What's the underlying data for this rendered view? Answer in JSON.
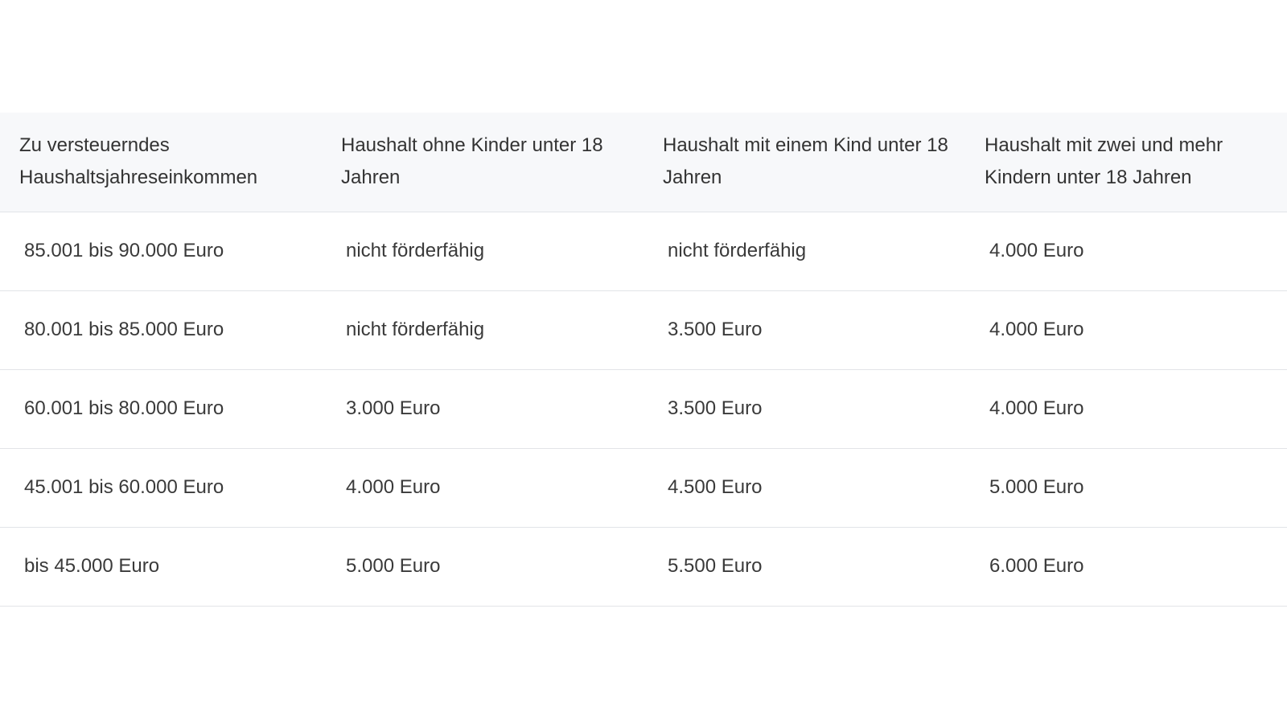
{
  "table": {
    "headers": [
      "Zu versteuerndes Haushaltsjahreseinkommen",
      "Haushalt ohne Kinder unter 18 Jahren",
      "Haushalt mit einem Kind unter 18 Jahren",
      "Haushalt mit zwei und mehr Kindern unter 18 Jahren"
    ],
    "rows": [
      [
        "85.001 bis 90.000 Euro",
        "nicht förderfähig",
        "nicht förderfähig",
        "4.000 Euro"
      ],
      [
        "80.001 bis 85.000 Euro",
        "nicht förderfähig",
        "3.500 Euro",
        "4.000 Euro"
      ],
      [
        "60.001 bis 80.000 Euro",
        "3.000 Euro",
        "3.500 Euro",
        "4.000 Euro"
      ],
      [
        "45.001 bis 60.000 Euro",
        "4.000 Euro",
        "4.500 Euro",
        "5.000 Euro"
      ],
      [
        "bis 45.000 Euro",
        "5.000 Euro",
        "5.500 Euro",
        "6.000 Euro"
      ]
    ]
  },
  "colors": {
    "header_background": "#f7f8fa",
    "row_divider": "#e2e4e8",
    "text": "#333333"
  }
}
